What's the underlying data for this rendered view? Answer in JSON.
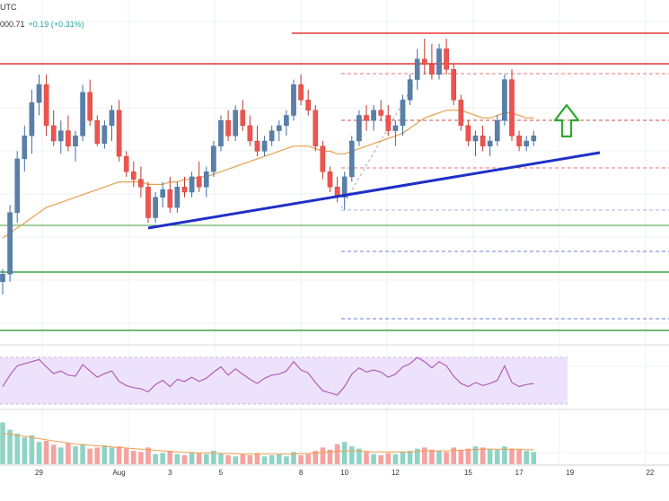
{
  "header": {
    "timezone": "UTC",
    "last_price": "000.71",
    "change": "+0.19 (+0.31%)"
  },
  "colors": {
    "up_candle": "#26a69a",
    "down_candle": "#ef5350",
    "rect_candle": "#5b7fa6",
    "ma_line": "#e8a04f",
    "trendline": "#1f2fc7",
    "resistance": "#e53935",
    "support": "#43a047",
    "dashed_blue": "#6b7fd6",
    "dashed_red": "#e57373",
    "arrow": "#2ea82e",
    "rsi": "#b05fb5",
    "rsi_band": "#ede2fb",
    "volume_ma": "#f0a050"
  },
  "chart_data": {
    "type": "candlestick",
    "x_tick_labels": [
      "29",
      "Aug",
      "3",
      "5",
      "8",
      "10",
      "12",
      "15",
      "17",
      "19",
      "22"
    ],
    "x_tick_index": [
      5,
      16,
      23,
      30,
      41,
      47,
      54,
      64,
      71,
      78,
      89
    ],
    "candles_ohlc_norm": [
      [
        0.05,
        0.1,
        0.0,
        0.08
      ],
      [
        0.08,
        0.35,
        0.05,
        0.32
      ],
      [
        0.32,
        0.56,
        0.28,
        0.53
      ],
      [
        0.53,
        0.66,
        0.48,
        0.62
      ],
      [
        0.62,
        0.8,
        0.55,
        0.75
      ],
      [
        0.75,
        0.86,
        0.7,
        0.82
      ],
      [
        0.82,
        0.86,
        0.62,
        0.66
      ],
      [
        0.66,
        0.72,
        0.58,
        0.6
      ],
      [
        0.6,
        0.68,
        0.55,
        0.64
      ],
      [
        0.64,
        0.7,
        0.56,
        0.58
      ],
      [
        0.58,
        0.64,
        0.52,
        0.62
      ],
      [
        0.62,
        0.82,
        0.6,
        0.79
      ],
      [
        0.79,
        0.84,
        0.66,
        0.68
      ],
      [
        0.68,
        0.7,
        0.58,
        0.59
      ],
      [
        0.59,
        0.68,
        0.57,
        0.66
      ],
      [
        0.66,
        0.74,
        0.6,
        0.72
      ],
      [
        0.72,
        0.76,
        0.52,
        0.54
      ],
      [
        0.54,
        0.56,
        0.46,
        0.48
      ],
      [
        0.48,
        0.52,
        0.42,
        0.45
      ],
      [
        0.45,
        0.5,
        0.38,
        0.42
      ],
      [
        0.42,
        0.44,
        0.28,
        0.3
      ],
      [
        0.3,
        0.4,
        0.28,
        0.38
      ],
      [
        0.38,
        0.44,
        0.34,
        0.41
      ],
      [
        0.41,
        0.46,
        0.32,
        0.34
      ],
      [
        0.34,
        0.44,
        0.32,
        0.42
      ],
      [
        0.42,
        0.46,
        0.38,
        0.4
      ],
      [
        0.4,
        0.48,
        0.38,
        0.46
      ],
      [
        0.46,
        0.52,
        0.4,
        0.42
      ],
      [
        0.42,
        0.5,
        0.38,
        0.48
      ],
      [
        0.48,
        0.6,
        0.46,
        0.58
      ],
      [
        0.58,
        0.7,
        0.56,
        0.68
      ],
      [
        0.68,
        0.72,
        0.6,
        0.62
      ],
      [
        0.62,
        0.74,
        0.6,
        0.72
      ],
      [
        0.72,
        0.76,
        0.64,
        0.66
      ],
      [
        0.66,
        0.7,
        0.58,
        0.6
      ],
      [
        0.6,
        0.66,
        0.54,
        0.56
      ],
      [
        0.56,
        0.62,
        0.54,
        0.6
      ],
      [
        0.6,
        0.66,
        0.58,
        0.64
      ],
      [
        0.64,
        0.68,
        0.6,
        0.66
      ],
      [
        0.66,
        0.72,
        0.62,
        0.7
      ],
      [
        0.7,
        0.84,
        0.68,
        0.82
      ],
      [
        0.82,
        0.86,
        0.74,
        0.76
      ],
      [
        0.76,
        0.8,
        0.7,
        0.72
      ],
      [
        0.72,
        0.74,
        0.56,
        0.58
      ],
      [
        0.58,
        0.6,
        0.45,
        0.48
      ],
      [
        0.48,
        0.5,
        0.4,
        0.42
      ],
      [
        0.42,
        0.46,
        0.36,
        0.38
      ],
      [
        0.38,
        0.48,
        0.33,
        0.46
      ],
      [
        0.46,
        0.62,
        0.44,
        0.6
      ],
      [
        0.6,
        0.72,
        0.58,
        0.7
      ],
      [
        0.7,
        0.74,
        0.64,
        0.68
      ],
      [
        0.68,
        0.74,
        0.64,
        0.72
      ],
      [
        0.72,
        0.76,
        0.68,
        0.7
      ],
      [
        0.7,
        0.74,
        0.62,
        0.64
      ],
      [
        0.64,
        0.68,
        0.58,
        0.66
      ],
      [
        0.66,
        0.78,
        0.62,
        0.76
      ],
      [
        0.76,
        0.86,
        0.74,
        0.84
      ],
      [
        0.84,
        0.96,
        0.8,
        0.92
      ],
      [
        0.92,
        1.0,
        0.86,
        0.9
      ],
      [
        0.9,
        0.98,
        0.84,
        0.86
      ],
      [
        0.86,
        0.98,
        0.84,
        0.96
      ],
      [
        0.96,
        1.0,
        0.86,
        0.88
      ],
      [
        0.88,
        0.9,
        0.74,
        0.76
      ],
      [
        0.76,
        0.78,
        0.64,
        0.66
      ],
      [
        0.66,
        0.68,
        0.58,
        0.6
      ],
      [
        0.6,
        0.64,
        0.54,
        0.62
      ],
      [
        0.62,
        0.66,
        0.56,
        0.58
      ],
      [
        0.58,
        0.62,
        0.54,
        0.6
      ],
      [
        0.6,
        0.7,
        0.58,
        0.68
      ],
      [
        0.68,
        0.86,
        0.66,
        0.84
      ],
      [
        0.84,
        0.88,
        0.6,
        0.62
      ],
      [
        0.62,
        0.64,
        0.56,
        0.58
      ],
      [
        0.58,
        0.62,
        0.56,
        0.6
      ],
      [
        0.6,
        0.64,
        0.58,
        0.62
      ]
    ],
    "ma_norm": [
      0.22,
      0.24,
      0.26,
      0.28,
      0.3,
      0.32,
      0.34,
      0.35,
      0.36,
      0.37,
      0.38,
      0.39,
      0.4,
      0.41,
      0.42,
      0.43,
      0.44,
      0.44,
      0.44,
      0.44,
      0.43,
      0.43,
      0.43,
      0.44,
      0.44,
      0.45,
      0.45,
      0.46,
      0.46,
      0.47,
      0.48,
      0.49,
      0.5,
      0.51,
      0.52,
      0.53,
      0.54,
      0.55,
      0.56,
      0.57,
      0.58,
      0.58,
      0.58,
      0.57,
      0.56,
      0.56,
      0.55,
      0.55,
      0.56,
      0.57,
      0.58,
      0.59,
      0.6,
      0.61,
      0.62,
      0.63,
      0.65,
      0.67,
      0.69,
      0.7,
      0.71,
      0.72,
      0.72,
      0.72,
      0.71,
      0.7,
      0.69,
      0.69,
      0.7,
      0.71,
      0.71,
      0.7,
      0.69,
      0.69
    ],
    "rsi_norm": [
      0.3,
      0.52,
      0.7,
      0.74,
      0.78,
      0.82,
      0.68,
      0.55,
      0.6,
      0.52,
      0.5,
      0.72,
      0.6,
      0.48,
      0.55,
      0.6,
      0.4,
      0.32,
      0.28,
      0.26,
      0.2,
      0.34,
      0.42,
      0.3,
      0.44,
      0.4,
      0.48,
      0.4,
      0.46,
      0.58,
      0.68,
      0.52,
      0.64,
      0.54,
      0.44,
      0.36,
      0.46,
      0.52,
      0.54,
      0.6,
      0.78,
      0.62,
      0.56,
      0.38,
      0.22,
      0.18,
      0.14,
      0.3,
      0.54,
      0.66,
      0.58,
      0.62,
      0.58,
      0.48,
      0.54,
      0.68,
      0.74,
      0.86,
      0.78,
      0.66,
      0.78,
      0.7,
      0.5,
      0.36,
      0.3,
      0.38,
      0.32,
      0.36,
      0.42,
      0.7,
      0.38,
      0.3,
      0.34,
      0.36
    ],
    "volume_norm": [
      0.75,
      0.62,
      0.55,
      0.48,
      0.52,
      0.4,
      0.42,
      0.35,
      0.3,
      0.38,
      0.32,
      0.36,
      0.28,
      0.3,
      0.34,
      0.3,
      0.32,
      0.28,
      0.24,
      0.22,
      0.3,
      0.18,
      0.2,
      0.24,
      0.18,
      0.16,
      0.22,
      0.2,
      0.18,
      0.24,
      0.2,
      0.16,
      0.14,
      0.18,
      0.16,
      0.2,
      0.14,
      0.16,
      0.18,
      0.14,
      0.22,
      0.16,
      0.18,
      0.24,
      0.3,
      0.26,
      0.36,
      0.4,
      0.32,
      0.28,
      0.22,
      0.18,
      0.16,
      0.2,
      0.18,
      0.22,
      0.24,
      0.28,
      0.3,
      0.26,
      0.24,
      0.22,
      0.3,
      0.26,
      0.28,
      0.32,
      0.3,
      0.28,
      0.26,
      0.32,
      0.28,
      0.26,
      0.24,
      0.22
    ],
    "volume_ma_norm": [
      0.55,
      0.54,
      0.52,
      0.5,
      0.48,
      0.46,
      0.44,
      0.42,
      0.4,
      0.38,
      0.36,
      0.35,
      0.34,
      0.33,
      0.32,
      0.31,
      0.3,
      0.29,
      0.28,
      0.27,
      0.26,
      0.25,
      0.24,
      0.23,
      0.22,
      0.21,
      0.21,
      0.2,
      0.2,
      0.2,
      0.19,
      0.19,
      0.19,
      0.18,
      0.18,
      0.18,
      0.18,
      0.18,
      0.18,
      0.18,
      0.18,
      0.19,
      0.19,
      0.2,
      0.21,
      0.22,
      0.23,
      0.24,
      0.24,
      0.24,
      0.23,
      0.22,
      0.22,
      0.22,
      0.22,
      0.22,
      0.22,
      0.23,
      0.24,
      0.24,
      0.24,
      0.24,
      0.25,
      0.25,
      0.26,
      0.26,
      0.27,
      0.27,
      0.27,
      0.27,
      0.27,
      0.27,
      0.26,
      0.26
    ],
    "annotations": {
      "resistance_levels": [
        "upper",
        "lower"
      ],
      "support_levels": [
        "upper",
        "middle",
        "lower"
      ],
      "trendline": "rising support",
      "arrow": "up"
    }
  }
}
